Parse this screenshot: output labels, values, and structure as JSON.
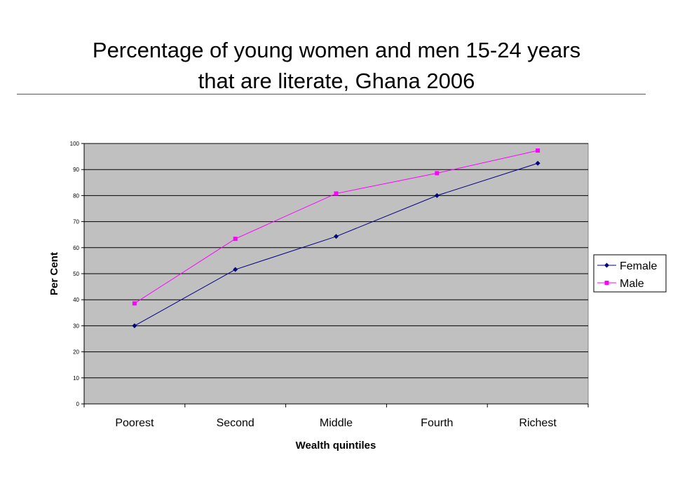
{
  "slide": {
    "title_line1": "Percentage of young women and men 15-24 years",
    "title_line2": "that are literate, Ghana 2006"
  },
  "chart_data": {
    "type": "line",
    "categories": [
      "Poorest",
      "Second",
      "Middle",
      "Fourth",
      "Richest"
    ],
    "series": [
      {
        "name": "Female",
        "color": "#00007f",
        "marker": "diamond",
        "values": [
          30,
          51.6,
          64.3,
          80,
          92.4
        ]
      },
      {
        "name": "Male",
        "color": "#ff00ff",
        "marker": "square",
        "values": [
          38.6,
          63.4,
          80.8,
          88.6,
          97.3
        ]
      }
    ],
    "xlabel": "Wealth quintiles",
    "ylabel": "Per Cent",
    "ylim": [
      0,
      100
    ],
    "yticks": [
      0,
      10,
      20,
      30,
      40,
      50,
      60,
      70,
      80,
      90,
      100
    ],
    "grid": true,
    "plot_background": "#c0c0c0",
    "legend_position": "right"
  }
}
